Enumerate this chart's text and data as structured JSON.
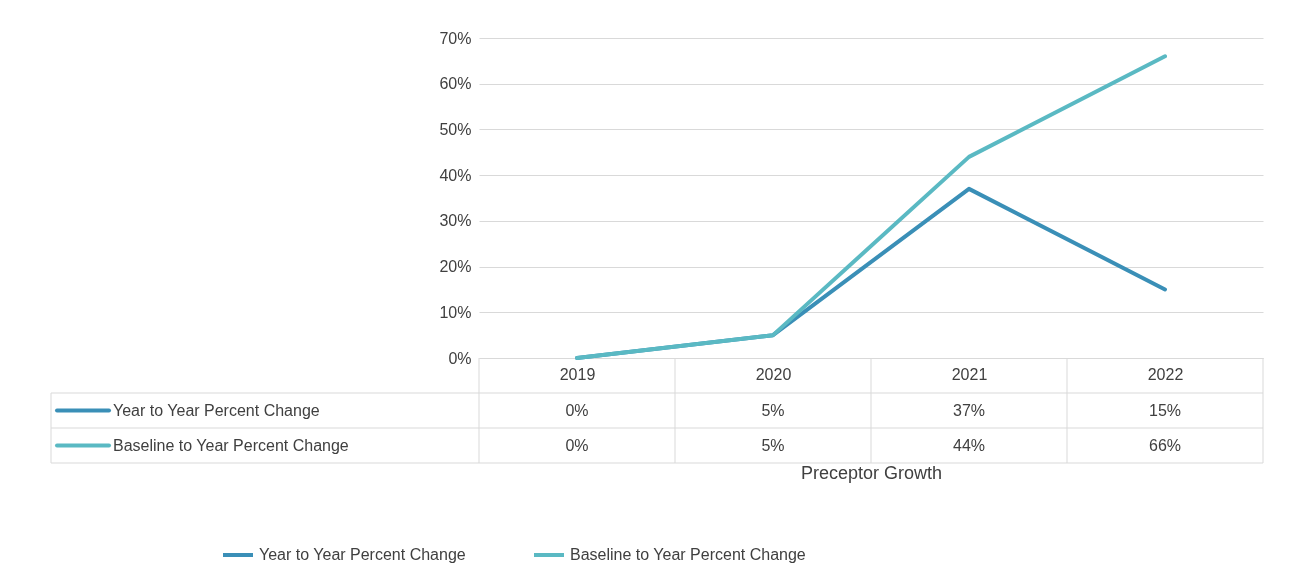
{
  "chart_data": {
    "type": "line",
    "xlabel": "Preceptor Growth",
    "categories": [
      "2019",
      "2020",
      "2021",
      "2022"
    ],
    "series": [
      {
        "name": "Year to Year Percent Change",
        "color": "#3a8fb7",
        "values": [
          0,
          5,
          37,
          15
        ],
        "value_labels": [
          "0%",
          "5%",
          "37%",
          "15%"
        ]
      },
      {
        "name": "Baseline to Year Percent Change",
        "color": "#5ab9c3",
        "values": [
          0,
          5,
          44,
          66
        ],
        "value_labels": [
          "0%",
          "5%",
          "44%",
          "66%"
        ]
      }
    ],
    "ylim": [
      0,
      70
    ],
    "yticks": [
      {
        "value": 0,
        "label": "0%"
      },
      {
        "value": 10,
        "label": "10%"
      },
      {
        "value": 20,
        "label": "20%"
      },
      {
        "value": 30,
        "label": "30%"
      },
      {
        "value": 40,
        "label": "40%"
      },
      {
        "value": 50,
        "label": "50%"
      },
      {
        "value": 60,
        "label": "60%"
      },
      {
        "value": 70,
        "label": "70%"
      }
    ],
    "grid": "y",
    "legend": "bottom",
    "line_style": "solid",
    "marker": "none"
  }
}
